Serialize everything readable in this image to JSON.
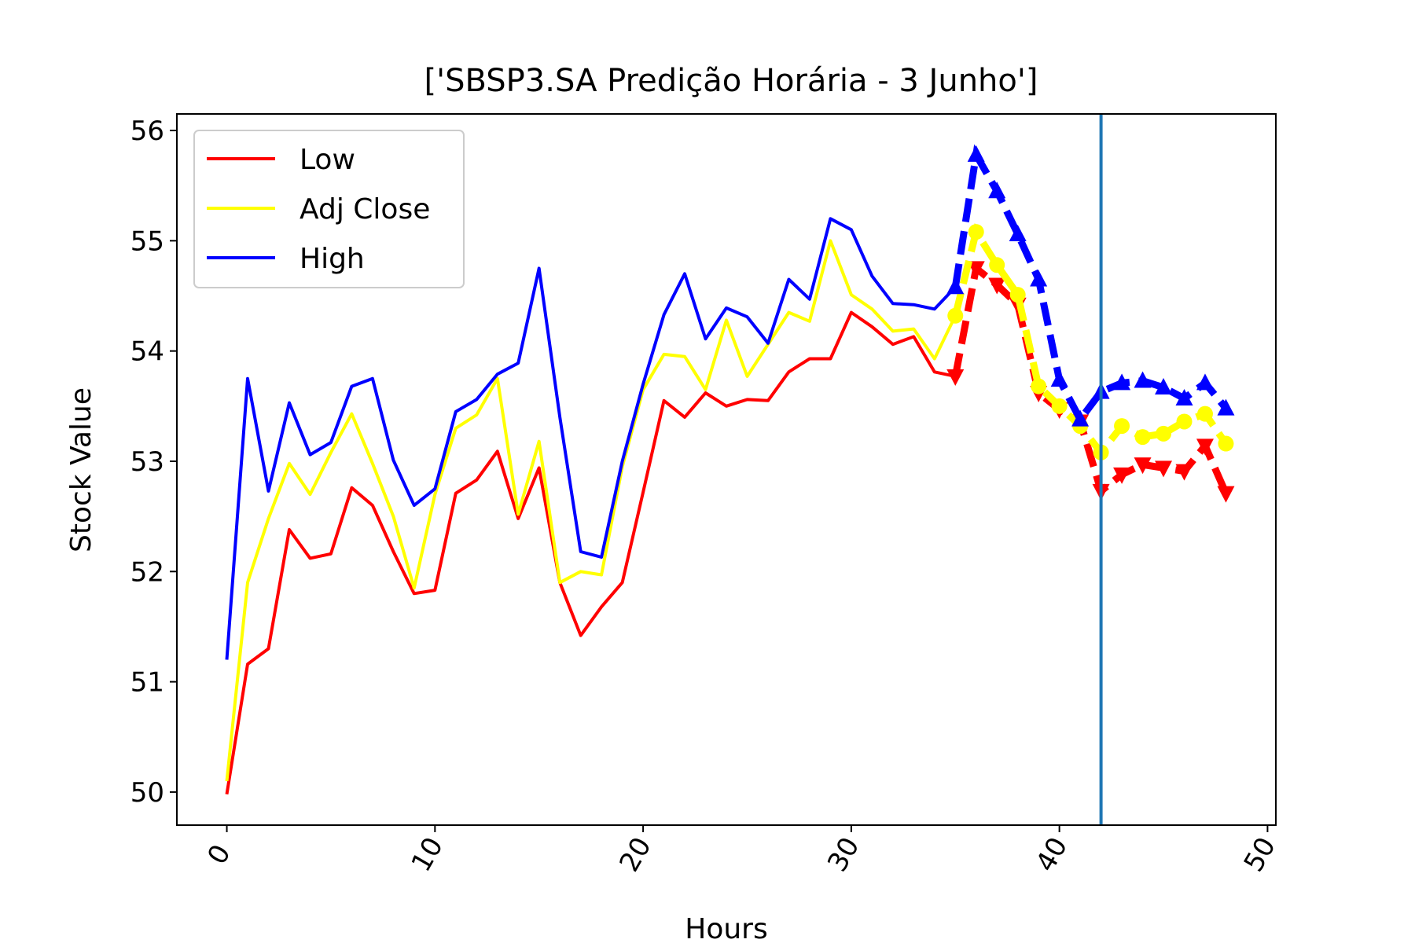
{
  "chart_data": {
    "type": "line",
    "title": "['SBSP3.SA Predição Horária - 3 Junho']",
    "xlabel": "Hours",
    "ylabel": "Stock Value",
    "xlim": [
      -2.4,
      50.4
    ],
    "ylim": [
      49.7,
      56.15
    ],
    "xticks": [
      0,
      10,
      20,
      30,
      40,
      50
    ],
    "yticks": [
      50,
      51,
      52,
      53,
      54,
      55,
      56
    ],
    "grid": false,
    "legend_position": "top-left",
    "vline_x": 42,
    "vline_color": "#1f77b4",
    "series": [
      {
        "name": "Low",
        "color": "#ff0000",
        "x": [
          0,
          1,
          2,
          3,
          4,
          5,
          6,
          7,
          8,
          9,
          10,
          11,
          12,
          13,
          14,
          15,
          16,
          17,
          18,
          19,
          20,
          21,
          22,
          23,
          24,
          25,
          26,
          27,
          28,
          29,
          30,
          31,
          32,
          33,
          34,
          35
        ],
        "values": [
          49.98,
          51.16,
          51.3,
          52.38,
          52.12,
          52.16,
          52.76,
          52.6,
          52.18,
          51.8,
          51.83,
          52.71,
          52.83,
          53.09,
          52.48,
          52.94,
          51.9,
          51.42,
          51.68,
          51.9,
          52.72,
          53.55,
          53.4,
          53.62,
          53.5,
          53.56,
          53.55,
          53.81,
          53.93,
          53.93,
          54.35,
          54.22,
          54.06,
          54.13,
          53.81,
          53.77
        ]
      },
      {
        "name": "Adj Close",
        "color": "#ffff00",
        "x": [
          0,
          1,
          2,
          3,
          4,
          5,
          6,
          7,
          8,
          9,
          10,
          11,
          12,
          13,
          14,
          15,
          16,
          17,
          18,
          19,
          20,
          21,
          22,
          23,
          24,
          25,
          26,
          27,
          28,
          29,
          30,
          31,
          32,
          33,
          34,
          35
        ],
        "values": [
          50.1,
          51.9,
          52.48,
          52.98,
          52.7,
          53.08,
          53.43,
          52.98,
          52.5,
          51.85,
          52.7,
          53.3,
          53.42,
          53.75,
          52.52,
          53.18,
          51.9,
          52.0,
          51.97,
          52.95,
          53.65,
          53.97,
          53.95,
          53.65,
          54.28,
          53.77,
          54.06,
          54.35,
          54.27,
          55.0,
          54.51,
          54.38,
          54.18,
          54.2,
          53.93,
          54.32
        ]
      },
      {
        "name": "High",
        "color": "#0000ff",
        "x": [
          0,
          1,
          2,
          3,
          4,
          5,
          6,
          7,
          8,
          9,
          10,
          11,
          12,
          13,
          14,
          15,
          16,
          17,
          18,
          19,
          20,
          21,
          22,
          23,
          24,
          25,
          26,
          27,
          28,
          29,
          30,
          31,
          32,
          33,
          34,
          35
        ],
        "values": [
          51.2,
          53.75,
          52.73,
          53.53,
          53.06,
          53.17,
          53.68,
          53.75,
          53.01,
          52.6,
          52.75,
          53.45,
          53.56,
          53.79,
          53.89,
          54.75,
          53.4,
          52.18,
          52.13,
          53.0,
          53.7,
          54.33,
          54.7,
          54.11,
          54.39,
          54.31,
          54.07,
          54.65,
          54.47,
          55.2,
          55.1,
          54.68,
          54.43,
          54.42,
          54.38,
          54.58
        ]
      }
    ],
    "prediction_series": [
      {
        "name": "Low",
        "color": "#ff0000",
        "marker": "triangle-down",
        "x": [
          35,
          36,
          37,
          38,
          39,
          40,
          41,
          42,
          43,
          44,
          45,
          46,
          47,
          48
        ],
        "values": [
          53.77,
          54.75,
          54.6,
          54.42,
          53.62,
          53.47,
          53.36,
          52.73,
          52.88,
          52.97,
          52.94,
          52.91,
          53.14,
          52.71
        ]
      },
      {
        "name": "Adj Close",
        "color": "#ffff00",
        "marker": "circle",
        "x": [
          35,
          36,
          37,
          38,
          39,
          40,
          41,
          42,
          43,
          44,
          45,
          46,
          47,
          48
        ],
        "values": [
          54.32,
          55.08,
          54.78,
          54.51,
          53.68,
          53.5,
          53.32,
          53.08,
          53.32,
          53.22,
          53.25,
          53.36,
          53.43,
          53.16
        ]
      },
      {
        "name": "High",
        "color": "#0000ff",
        "marker": "triangle-up",
        "x": [
          35,
          36,
          37,
          38,
          39,
          40,
          41,
          42,
          43,
          44,
          45,
          46,
          47,
          48
        ],
        "values": [
          54.58,
          55.78,
          55.45,
          55.06,
          54.65,
          53.74,
          53.38,
          53.63,
          53.71,
          53.73,
          53.67,
          53.57,
          53.71,
          53.48
        ]
      }
    ]
  }
}
